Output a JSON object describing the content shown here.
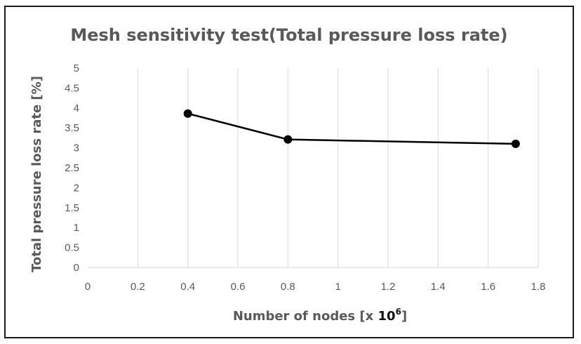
{
  "chart_data": {
    "type": "line",
    "title": "Mesh sensitivity test(Total pressure loss rate)",
    "xlabel": "Number of nodes [x ",
    "xlabel_exponent_base": "10",
    "xlabel_exponent": "6",
    "xlabel_close": "]",
    "ylabel": "Total pressure loss rate [%]",
    "xlim": [
      0,
      1.8
    ],
    "ylim": [
      0,
      5
    ],
    "x_ticks": [
      "0",
      "0.2",
      "0.4",
      "0.6",
      "0.8",
      "1",
      "1.2",
      "1.4",
      "1.6",
      "1.8"
    ],
    "y_ticks": [
      "0",
      "0.5",
      "1",
      "1.5",
      "2",
      "2.5",
      "3",
      "3.5",
      "4",
      "4.5",
      "5"
    ],
    "grid": "vertical",
    "series": [
      {
        "name": "Total pressure loss rate",
        "x": [
          0.4,
          0.8,
          1.71
        ],
        "y": [
          3.86,
          3.21,
          3.1
        ]
      }
    ],
    "colors": {
      "line": "#000000",
      "grid": "#d9d9d9",
      "text": "#595959"
    }
  }
}
